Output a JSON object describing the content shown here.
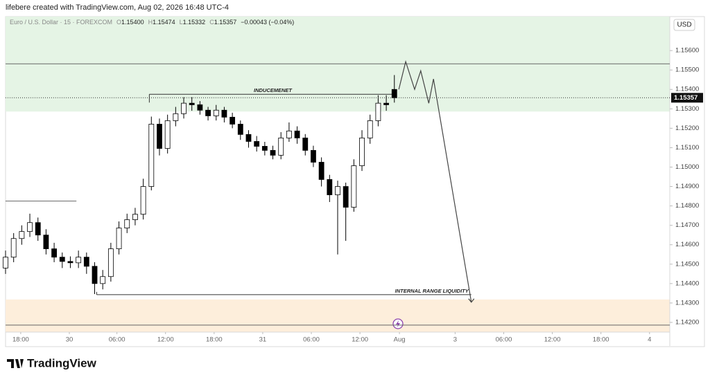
{
  "header": "lifebere created with TradingView.com, Aug 02, 2026 16:48 UTC-4",
  "footer_logo": "TradingView",
  "chart_data": {
    "type": "candlestick",
    "symbol": "Euro / U.S. Dollar · 15 · FOREXCOM",
    "ohlc_legend": [
      {
        "label": "O",
        "value": "1.15400"
      },
      {
        "label": "H",
        "value": "1.15474"
      },
      {
        "label": "L",
        "value": "1.15332"
      },
      {
        "label": "C",
        "value": "1.15357"
      }
    ],
    "change_label": "−0.00043 (−0.04%)",
    "currency": "USD",
    "last_price_label": "1.15357",
    "up_color": "#ffffff",
    "down_color": "#000000",
    "border_color": "#000000",
    "xlim": [
      0,
      328
    ],
    "ylim": [
      1.1415,
      1.15775
    ],
    "grid": false,
    "xticks": [
      {
        "value": 7.5,
        "label": "18:00"
      },
      {
        "value": 31.5,
        "label": "30"
      },
      {
        "value": 55,
        "label": "06:00"
      },
      {
        "value": 79,
        "label": "12:00"
      },
      {
        "value": 103,
        "label": "18:00"
      },
      {
        "value": 127,
        "label": "31"
      },
      {
        "value": 151,
        "label": "06:00"
      },
      {
        "value": 175,
        "label": "12:00"
      },
      {
        "value": 194.5,
        "label": "Aug"
      },
      {
        "value": 222,
        "label": "3"
      },
      {
        "value": 246,
        "label": "06:00"
      },
      {
        "value": 270,
        "label": "12:00"
      },
      {
        "value": 294,
        "label": "18:00"
      },
      {
        "value": 318,
        "label": "4"
      }
    ],
    "yticks": [
      {
        "value": 1.142,
        "label": "1.14200"
      },
      {
        "value": 1.143,
        "label": "1.14300"
      },
      {
        "value": 1.144,
        "label": "1.14400"
      },
      {
        "value": 1.145,
        "label": "1.14500"
      },
      {
        "value": 1.146,
        "label": "1.14600"
      },
      {
        "value": 1.147,
        "label": "1.14700"
      },
      {
        "value": 1.148,
        "label": "1.14800"
      },
      {
        "value": 1.149,
        "label": "1.14900"
      },
      {
        "value": 1.15,
        "label": "1.15000"
      },
      {
        "value": 1.151,
        "label": "1.15100"
      },
      {
        "value": 1.152,
        "label": "1.15200"
      },
      {
        "value": 1.153,
        "label": "1.15300"
      },
      {
        "value": 1.154,
        "label": "1.15400"
      },
      {
        "value": 1.155,
        "label": "1.15500"
      },
      {
        "value": 1.156,
        "label": "1.15600"
      }
    ],
    "x": [
      0,
      4,
      8,
      12,
      16,
      20,
      24,
      28,
      32,
      36,
      40,
      44,
      48,
      52,
      56,
      60,
      64,
      68,
      72,
      76,
      80,
      84,
      88,
      92,
      96,
      100,
      104,
      108,
      112,
      116,
      120,
      124,
      128,
      132,
      136,
      140,
      144,
      148,
      152,
      156,
      160,
      164,
      168,
      172,
      176,
      180,
      184,
      188,
      192
    ],
    "open": [
      1.1448,
      1.14536,
      1.14632,
      1.14668,
      1.14714,
      1.1465,
      1.14579,
      1.14536,
      1.14514,
      1.14507,
      1.14536,
      1.14489,
      1.144,
      1.14436,
      1.14579,
      1.14686,
      1.14729,
      1.14757,
      1.149,
      1.15221,
      1.15096,
      1.15239,
      1.15275,
      1.15329,
      1.15321,
      1.15293,
      1.15264,
      1.15293,
      1.15257,
      1.15221,
      1.15168,
      1.15132,
      1.15107,
      1.15086,
      1.15061,
      1.1515,
      1.15186,
      1.1515,
      1.15086,
      1.15025,
      1.14936,
      1.14857,
      1.149,
      1.14793,
      1.15007,
      1.1515,
      1.15239,
      1.15329,
      1.154
    ],
    "high": [
      1.1457,
      1.1466,
      1.147,
      1.1476,
      1.1474,
      1.1468,
      1.1461,
      1.1456,
      1.1454,
      1.1457,
      1.1456,
      1.1451,
      1.1447,
      1.1461,
      1.1472,
      1.1476,
      1.1479,
      1.1494,
      1.1526,
      1.1525,
      1.1527,
      1.1531,
      1.1536,
      1.1536,
      1.1534,
      1.1531,
      1.1532,
      1.1531,
      1.1528,
      1.1524,
      1.1519,
      1.1516,
      1.1513,
      1.1511,
      1.1518,
      1.1523,
      1.1521,
      1.1517,
      1.1511,
      1.1505,
      1.1496,
      1.1493,
      1.1492,
      1.1504,
      1.1519,
      1.1527,
      1.1537,
      1.1537,
      1.15474
    ],
    "low": [
      1.1445,
      1.1451,
      1.146,
      1.1464,
      1.1462,
      1.1455,
      1.1451,
      1.1448,
      1.1448,
      1.1448,
      1.1445,
      1.14346,
      1.1437,
      1.1441,
      1.1455,
      1.1466,
      1.147,
      1.1473,
      1.1488,
      1.1506,
      1.1507,
      1.1521,
      1.1525,
      1.1529,
      1.1527,
      1.1524,
      1.1524,
      1.1523,
      1.152,
      1.1514,
      1.151,
      1.1508,
      1.1506,
      1.1504,
      1.1504,
      1.1513,
      1.1512,
      1.1506,
      1.15,
      1.149,
      1.1482,
      1.1455,
      1.1462,
      1.1477,
      1.1498,
      1.1512,
      1.1521,
      1.1529,
      1.15332
    ],
    "close": [
      1.14536,
      1.14632,
      1.14668,
      1.14714,
      1.1465,
      1.14579,
      1.14536,
      1.14514,
      1.14507,
      1.14536,
      1.14489,
      1.144,
      1.14436,
      1.14579,
      1.14686,
      1.14729,
      1.14757,
      1.149,
      1.15221,
      1.15096,
      1.15239,
      1.15275,
      1.15329,
      1.15321,
      1.15293,
      1.15264,
      1.15293,
      1.15257,
      1.15221,
      1.15168,
      1.15132,
      1.15107,
      1.15086,
      1.15061,
      1.1515,
      1.15186,
      1.1515,
      1.15086,
      1.15025,
      1.14936,
      1.14857,
      1.149,
      1.14793,
      1.15007,
      1.1515,
      1.15239,
      1.15329,
      1.15321,
      1.15357
    ],
    "zones": [
      {
        "x": [
          0,
          328
        ],
        "y": [
          1.15286,
          1.15775
        ],
        "color": "#e5f4e5"
      },
      {
        "x": [
          0,
          328
        ],
        "y": [
          1.1415,
          1.14318
        ],
        "color": "#fdeedb"
      }
    ],
    "lines": [
      {
        "x": [
          0,
          328
        ],
        "y": 1.15532,
        "color": "#666666"
      },
      {
        "x": [
          0,
          328
        ],
        "y": 1.14186,
        "color": "#666666"
      },
      {
        "x": [
          0,
          35
        ],
        "y": 1.14825,
        "color": "#666666"
      }
    ],
    "labeled_lines": [
      {
        "label": "INDUCEMENET",
        "x": [
          71,
          193
        ],
        "y": 1.15375
      },
      {
        "label": "INTERNAL RANGE LIQUIDITY",
        "x": [
          45,
          230
        ],
        "y": 1.14343
      }
    ],
    "projection": {
      "x": [
        194.2,
        197.6,
        202,
        205,
        209,
        211.3,
        230
      ],
      "y": [
        1.154,
        1.15543,
        1.154,
        1.15496,
        1.15329,
        1.15454,
        1.14304
      ]
    }
  }
}
